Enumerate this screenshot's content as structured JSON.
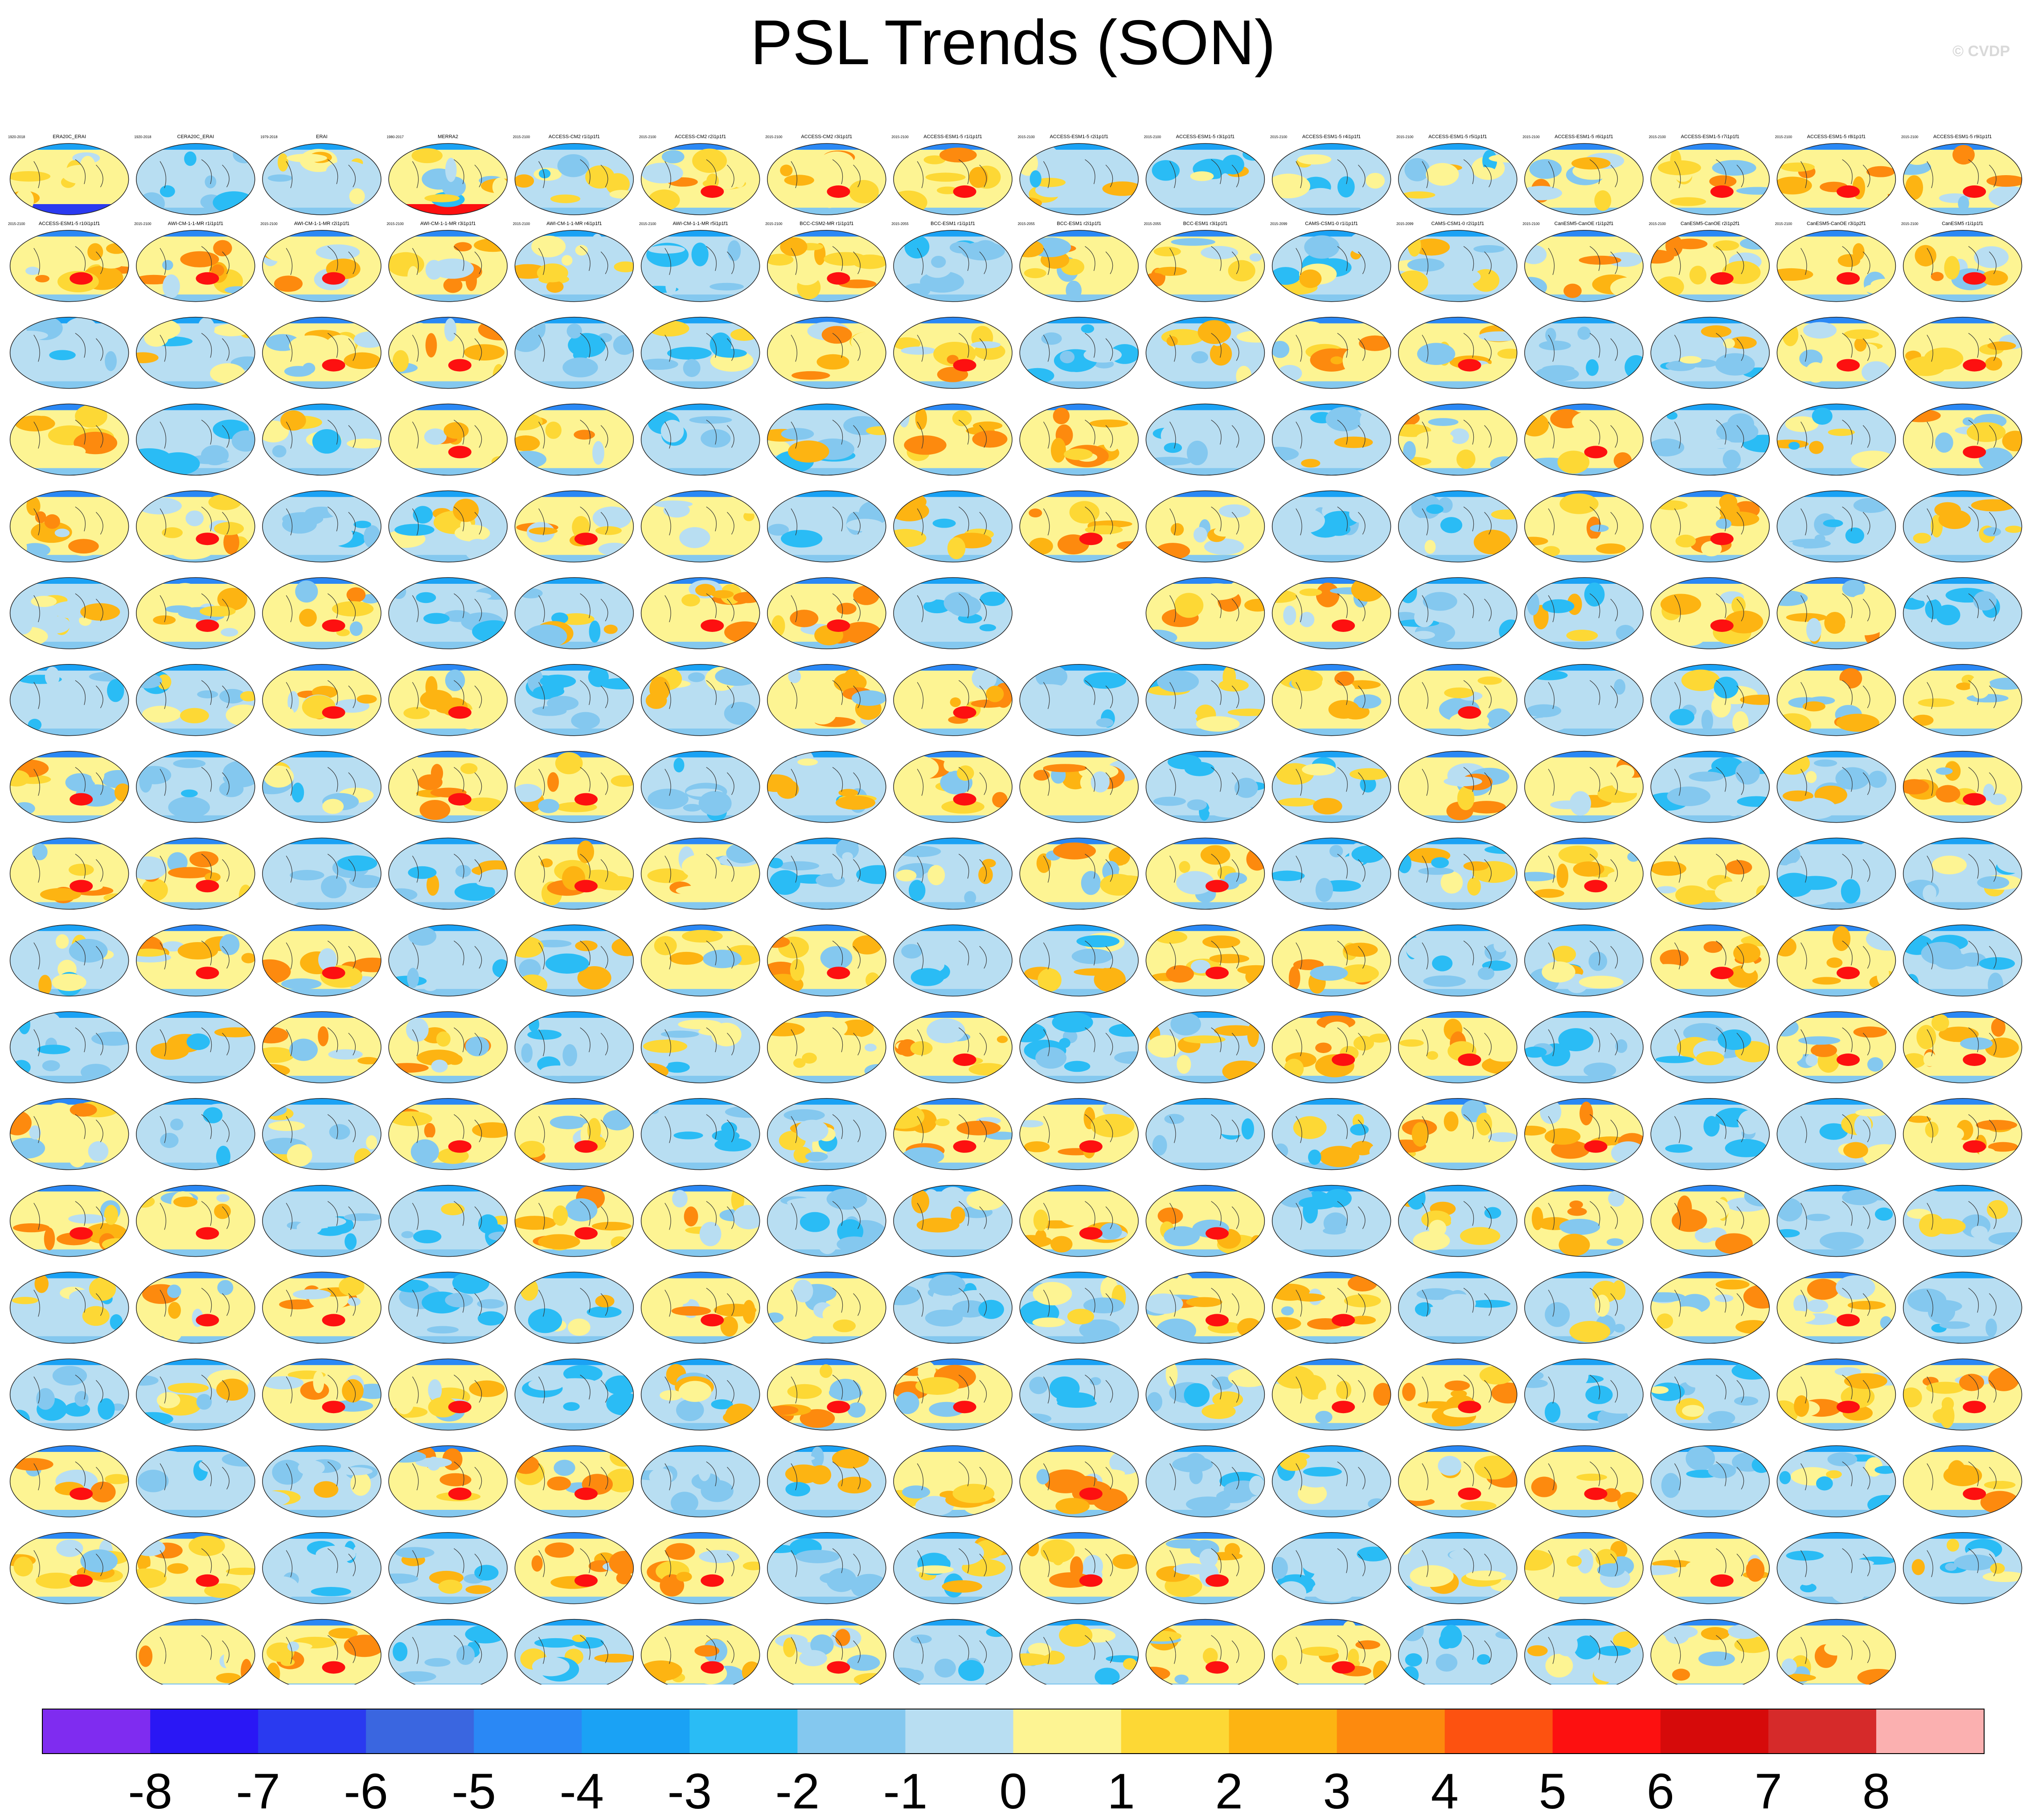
{
  "title": "PSL Trends (SON)",
  "credit": "© CVDP",
  "chart_data": {
    "type": "heatmap",
    "title": "PSL Trends (SON)",
    "description_units": "hPa 40yr⁻¹",
    "colorbar": {
      "ticks": [
        "-8",
        "-7",
        "-6",
        "-5",
        "-4",
        "-3",
        "-2",
        "-1",
        "0",
        "1",
        "2",
        "3",
        "4",
        "5",
        "6",
        "7",
        "8"
      ],
      "colors": [
        "#7f2cf0",
        "#2a17f5",
        "#2a3af0",
        "#3a66e0",
        "#2a88f5",
        "#1aa2f5",
        "#2abcf5",
        "#84c8ef",
        "#b8def2",
        "#fdf493",
        "#fdd835",
        "#fdb412",
        "#fd8a0e",
        "#fd5210",
        "#fd1010",
        "#d60a0a",
        "#d62a2a",
        "#fbb0b0"
      ]
    },
    "layout": {
      "rows": 18,
      "cols": 16,
      "empty_slots": [
        [
          5,
          8
        ],
        [
          17,
          0
        ],
        [
          17,
          15
        ]
      ]
    },
    "panels": [
      {
        "title": "ERA20C_ERAI",
        "period": "1920-2018",
        "pattern": "south-low"
      },
      {
        "title": "CERA20C_ERAI",
        "period": "1920-2018",
        "pattern": "blue"
      },
      {
        "title": "ERAI",
        "period": "1979-2018",
        "pattern": "mixed"
      },
      {
        "title": "MERRA2",
        "period": "1980-2017",
        "pattern": "red-rim"
      },
      {
        "title": "ACCESS-CM2 r1i1p1f1",
        "period": "2015-2100",
        "pattern": "mixed"
      },
      {
        "title": "ACCESS-CM2 r2i1p1f1",
        "period": "2015-2100",
        "pattern": "warm"
      },
      {
        "title": "ACCESS-CM2 r3i1p1f1",
        "period": "2015-2100",
        "pattern": "warm"
      },
      {
        "title": "ACCESS-ESM1-5 r1i1p1f1",
        "period": "2015-2100",
        "pattern": "warm"
      },
      {
        "title": "ACCESS-ESM1-5 r2i1p1f1",
        "period": "2015-2100",
        "pattern": "mixed"
      },
      {
        "title": "ACCESS-ESM1-5 r3i1p1f1",
        "period": "2015-2100",
        "pattern": "mixed"
      },
      {
        "title": "ACCESS-ESM1-5 r4i1p1f1",
        "period": "2015-2100",
        "pattern": "mixed"
      },
      {
        "title": "ACCESS-ESM1-5 r5i1p1f1",
        "period": "2015-2100",
        "pattern": "mixed"
      },
      {
        "title": "ACCESS-ESM1-5 r6i1p1f1",
        "period": "2015-2100",
        "pattern": "warm"
      },
      {
        "title": "ACCESS-ESM1-5 r7i1p1f1",
        "period": "2015-2100",
        "pattern": "warm"
      },
      {
        "title": "ACCESS-ESM1-5 r8i1p1f1",
        "period": "2015-2100",
        "pattern": "warm"
      },
      {
        "title": "ACCESS-ESM1-5 r9i1p1f1",
        "period": "2015-2100",
        "pattern": "warm"
      },
      {
        "title": "ACCESS-ESM1-5 r10i1p1f1",
        "period": "2015-2100",
        "pattern": "warm"
      },
      {
        "title": "AWI-CM-1-1-MR r1i1p1f1",
        "period": "2015-2100",
        "pattern": "warm"
      },
      {
        "title": "AWI-CM-1-1-MR r2i1p1f1",
        "period": "2015-2100",
        "pattern": "warm"
      },
      {
        "title": "AWI-CM-1-1-MR r3i1p1f1",
        "period": "2015-2100",
        "pattern": "warm"
      },
      {
        "title": "AWI-CM-1-1-MR r4i1p1f1",
        "period": "2015-2100",
        "pattern": "mixed"
      },
      {
        "title": "AWI-CM-1-1-MR r5i1p1f1",
        "period": "2015-2100",
        "pattern": "blue"
      },
      {
        "title": "BCC-CSM2-MR r1i1p1f1",
        "period": "2015-2100",
        "pattern": "warm"
      },
      {
        "title": "BCC-ESM1 r1i1p1f1",
        "period": "2015-2055",
        "pattern": "blue"
      },
      {
        "title": "BCC-ESM1 r2i1p1f1",
        "period": "2015-2055",
        "pattern": "warm"
      },
      {
        "title": "BCC-ESM1 r3i1p1f1",
        "period": "2015-2055",
        "pattern": "warm"
      },
      {
        "title": "CAMS-CSM1-0 r1i1p1f1",
        "period": "2015-2099",
        "pattern": "mixed"
      },
      {
        "title": "CAMS-CSM1-0 r2i1p1f1",
        "period": "2015-2099",
        "pattern": "mixed"
      },
      {
        "title": "CanESM5-CanOE r1i1p2f1",
        "period": "2015-2100",
        "pattern": "warm"
      },
      {
        "title": "CanESM5-CanOE r2i1p2f1",
        "period": "2015-2100",
        "pattern": "warm"
      },
      {
        "title": "CanESM5-CanOE r3i1p2f1",
        "period": "2015-2100",
        "pattern": "warm"
      },
      {
        "title": "CanESM5 r1i1p1f1",
        "period": "2015-2100",
        "pattern": "warm"
      }
    ],
    "remaining_panels_note": ""
  }
}
